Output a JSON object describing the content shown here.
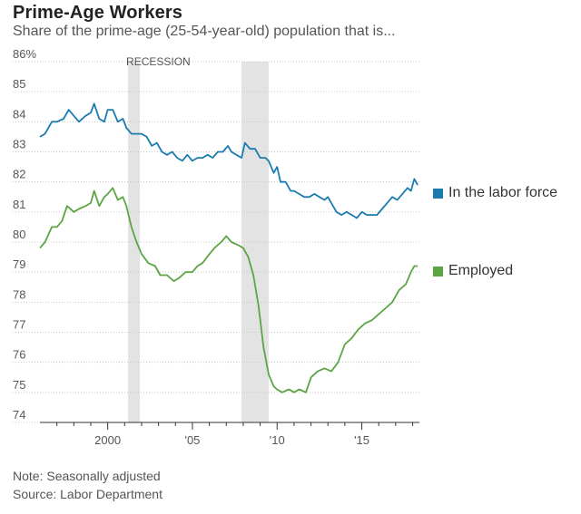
{
  "header": {
    "title": "Prime-Age Workers",
    "subtitle": "Share of the prime-age (25-54-year-old) population that is..."
  },
  "footer": {
    "note": "Note: Seasonally adjusted",
    "source": "Source: Labor Department"
  },
  "colors": {
    "labor_force": "#1a7bb0",
    "employed": "#5ba545",
    "recession": "#e3e3e3",
    "grid": "#c8c8c8"
  },
  "chart_data": {
    "type": "line",
    "title": "Prime-Age Workers",
    "subtitle": "Share of the prime-age (25-54-year-old) population that is...",
    "xlim": [
      1996,
      2018.4
    ],
    "ylim": [
      74,
      86
    ],
    "y_ticks": [
      74,
      75,
      76,
      77,
      78,
      79,
      80,
      81,
      82,
      83,
      84,
      85,
      86
    ],
    "y_tick_labels": [
      "74",
      "75",
      "76",
      "77",
      "78",
      "79",
      "80",
      "81",
      "82",
      "83",
      "84",
      "85",
      "86%"
    ],
    "x_ticks": [
      2000,
      2005,
      2010,
      2015
    ],
    "x_tick_labels": [
      "2000",
      "'05",
      "'10",
      "'15"
    ],
    "x_minor_ticks": [
      1997,
      1998,
      1999,
      2001,
      2002,
      2003,
      2004,
      2006,
      2007,
      2008,
      2009,
      2011,
      2012,
      2013,
      2014,
      2016,
      2017,
      2018
    ],
    "grid": true,
    "recession_label": "RECESSION",
    "recessions": [
      [
        2001.2,
        2001.9
      ],
      [
        2007.9,
        2009.5
      ]
    ],
    "series": [
      {
        "name": "In the labor force",
        "color": "#1a7bb0",
        "points": [
          [
            1996.0,
            83.5
          ],
          [
            1996.3,
            83.6
          ],
          [
            1996.7,
            84.0
          ],
          [
            1997.0,
            84.0
          ],
          [
            1997.4,
            84.1
          ],
          [
            1997.7,
            84.4
          ],
          [
            1998.0,
            84.2
          ],
          [
            1998.3,
            84.0
          ],
          [
            1998.7,
            84.2
          ],
          [
            1999.0,
            84.3
          ],
          [
            1999.2,
            84.6
          ],
          [
            1999.5,
            84.1
          ],
          [
            1999.8,
            84.0
          ],
          [
            2000.0,
            84.4
          ],
          [
            2000.3,
            84.4
          ],
          [
            2000.6,
            84.0
          ],
          [
            2000.9,
            84.1
          ],
          [
            2001.1,
            83.8
          ],
          [
            2001.4,
            83.6
          ],
          [
            2001.7,
            83.6
          ],
          [
            2002.0,
            83.6
          ],
          [
            2002.3,
            83.5
          ],
          [
            2002.6,
            83.2
          ],
          [
            2002.9,
            83.3
          ],
          [
            2003.2,
            83.0
          ],
          [
            2003.5,
            82.9
          ],
          [
            2003.8,
            83.0
          ],
          [
            2004.1,
            82.8
          ],
          [
            2004.4,
            82.7
          ],
          [
            2004.7,
            82.9
          ],
          [
            2005.0,
            82.7
          ],
          [
            2005.3,
            82.8
          ],
          [
            2005.6,
            82.8
          ],
          [
            2005.9,
            82.9
          ],
          [
            2006.2,
            82.8
          ],
          [
            2006.5,
            83.0
          ],
          [
            2006.8,
            83.0
          ],
          [
            2007.1,
            83.2
          ],
          [
            2007.3,
            83.0
          ],
          [
            2007.6,
            82.9
          ],
          [
            2007.9,
            82.8
          ],
          [
            2008.1,
            83.3
          ],
          [
            2008.4,
            83.1
          ],
          [
            2008.7,
            83.1
          ],
          [
            2009.0,
            82.8
          ],
          [
            2009.3,
            82.8
          ],
          [
            2009.5,
            82.7
          ],
          [
            2009.8,
            82.3
          ],
          [
            2010.0,
            82.5
          ],
          [
            2010.2,
            82.0
          ],
          [
            2010.5,
            82.0
          ],
          [
            2010.8,
            81.7
          ],
          [
            2011.0,
            81.7
          ],
          [
            2011.3,
            81.6
          ],
          [
            2011.6,
            81.5
          ],
          [
            2011.9,
            81.5
          ],
          [
            2012.2,
            81.6
          ],
          [
            2012.5,
            81.5
          ],
          [
            2012.8,
            81.4
          ],
          [
            2013.0,
            81.5
          ],
          [
            2013.3,
            81.2
          ],
          [
            2013.5,
            81.0
          ],
          [
            2013.8,
            80.9
          ],
          [
            2014.1,
            81.0
          ],
          [
            2014.4,
            80.9
          ],
          [
            2014.7,
            80.8
          ],
          [
            2015.0,
            81.0
          ],
          [
            2015.3,
            80.9
          ],
          [
            2015.6,
            80.9
          ],
          [
            2015.9,
            80.9
          ],
          [
            2016.2,
            81.1
          ],
          [
            2016.5,
            81.3
          ],
          [
            2016.8,
            81.5
          ],
          [
            2017.1,
            81.4
          ],
          [
            2017.4,
            81.6
          ],
          [
            2017.7,
            81.8
          ],
          [
            2017.9,
            81.7
          ],
          [
            2018.1,
            82.1
          ],
          [
            2018.3,
            81.9
          ]
        ]
      },
      {
        "name": "Employed",
        "color": "#5ba545",
        "points": [
          [
            1996.0,
            79.8
          ],
          [
            1996.3,
            80.0
          ],
          [
            1996.7,
            80.5
          ],
          [
            1997.0,
            80.5
          ],
          [
            1997.3,
            80.7
          ],
          [
            1997.6,
            81.2
          ],
          [
            1998.0,
            81.0
          ],
          [
            1998.3,
            81.1
          ],
          [
            1998.7,
            81.2
          ],
          [
            1999.0,
            81.3
          ],
          [
            1999.2,
            81.7
          ],
          [
            1999.5,
            81.2
          ],
          [
            1999.8,
            81.5
          ],
          [
            2000.0,
            81.6
          ],
          [
            2000.3,
            81.8
          ],
          [
            2000.6,
            81.4
          ],
          [
            2000.9,
            81.5
          ],
          [
            2001.1,
            81.2
          ],
          [
            2001.4,
            80.5
          ],
          [
            2001.7,
            80.0
          ],
          [
            2002.0,
            79.6
          ],
          [
            2002.4,
            79.3
          ],
          [
            2002.8,
            79.2
          ],
          [
            2003.1,
            78.9
          ],
          [
            2003.5,
            78.9
          ],
          [
            2003.9,
            78.7
          ],
          [
            2004.2,
            78.8
          ],
          [
            2004.6,
            79.0
          ],
          [
            2005.0,
            79.0
          ],
          [
            2005.3,
            79.2
          ],
          [
            2005.6,
            79.3
          ],
          [
            2006.0,
            79.6
          ],
          [
            2006.3,
            79.8
          ],
          [
            2006.7,
            80.0
          ],
          [
            2007.0,
            80.2
          ],
          [
            2007.3,
            80.0
          ],
          [
            2007.7,
            79.9
          ],
          [
            2008.0,
            79.8
          ],
          [
            2008.3,
            79.5
          ],
          [
            2008.6,
            78.9
          ],
          [
            2008.9,
            77.9
          ],
          [
            2009.2,
            76.5
          ],
          [
            2009.5,
            75.6
          ],
          [
            2009.8,
            75.2
          ],
          [
            2010.0,
            75.1
          ],
          [
            2010.3,
            75.0
          ],
          [
            2010.7,
            75.1
          ],
          [
            2011.0,
            75.0
          ],
          [
            2011.3,
            75.1
          ],
          [
            2011.7,
            75.0
          ],
          [
            2012.0,
            75.5
          ],
          [
            2012.4,
            75.7
          ],
          [
            2012.8,
            75.8
          ],
          [
            2013.2,
            75.7
          ],
          [
            2013.6,
            76.0
          ],
          [
            2014.0,
            76.6
          ],
          [
            2014.4,
            76.8
          ],
          [
            2014.8,
            77.1
          ],
          [
            2015.2,
            77.3
          ],
          [
            2015.6,
            77.4
          ],
          [
            2016.0,
            77.6
          ],
          [
            2016.4,
            77.8
          ],
          [
            2016.8,
            78.0
          ],
          [
            2017.2,
            78.4
          ],
          [
            2017.6,
            78.6
          ],
          [
            2017.9,
            79.0
          ],
          [
            2018.1,
            79.2
          ],
          [
            2018.3,
            79.2
          ]
        ]
      }
    ]
  }
}
